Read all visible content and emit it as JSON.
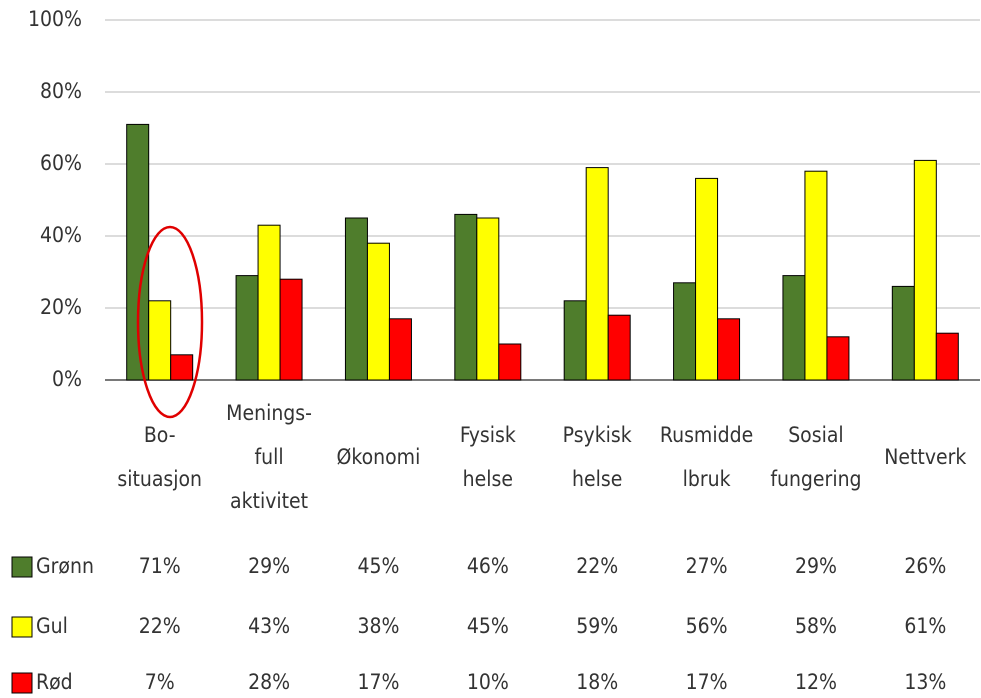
{
  "chart_data": {
    "type": "bar",
    "categories": [
      "Bo-\nsituasjon",
      "Menings-\nfull\naktivitet",
      "Økonomi",
      "Fysisk\nhelse",
      "Psykisk\nhelse",
      "Rusmidde\nlbruk",
      "Sosial\nfungering",
      "Nettverk"
    ],
    "series": [
      {
        "name": "Grønn",
        "color": "#4f7d2c",
        "values": [
          71,
          29,
          45,
          46,
          22,
          27,
          29,
          26
        ],
        "value_labels": [
          "71%",
          "29%",
          "45%",
          "46%",
          "22%",
          "27%",
          "29%",
          "26%"
        ]
      },
      {
        "name": "Gul",
        "color": "#ffff00",
        "values": [
          22,
          43,
          38,
          45,
          59,
          56,
          58,
          61
        ],
        "value_labels": [
          "22%",
          "43%",
          "38%",
          "45%",
          "59%",
          "56%",
          "58%",
          "61%"
        ]
      },
      {
        "name": "Rød",
        "color": "#ff0000",
        "values": [
          7,
          28,
          17,
          10,
          18,
          17,
          12,
          13
        ],
        "value_labels": [
          "7%",
          "28%",
          "17%",
          "10%",
          "18%",
          "17%",
          "12%",
          "13%"
        ]
      }
    ],
    "ylim": [
      0,
      100
    ],
    "yticks": [
      {
        "value": 0,
        "label": "0%"
      },
      {
        "value": 20,
        "label": "20%"
      },
      {
        "value": 40,
        "label": "40%"
      },
      {
        "value": 60,
        "label": "60%"
      },
      {
        "value": 80,
        "label": "80%"
      },
      {
        "value": 100,
        "label": "100%"
      }
    ],
    "grid": true
  }
}
